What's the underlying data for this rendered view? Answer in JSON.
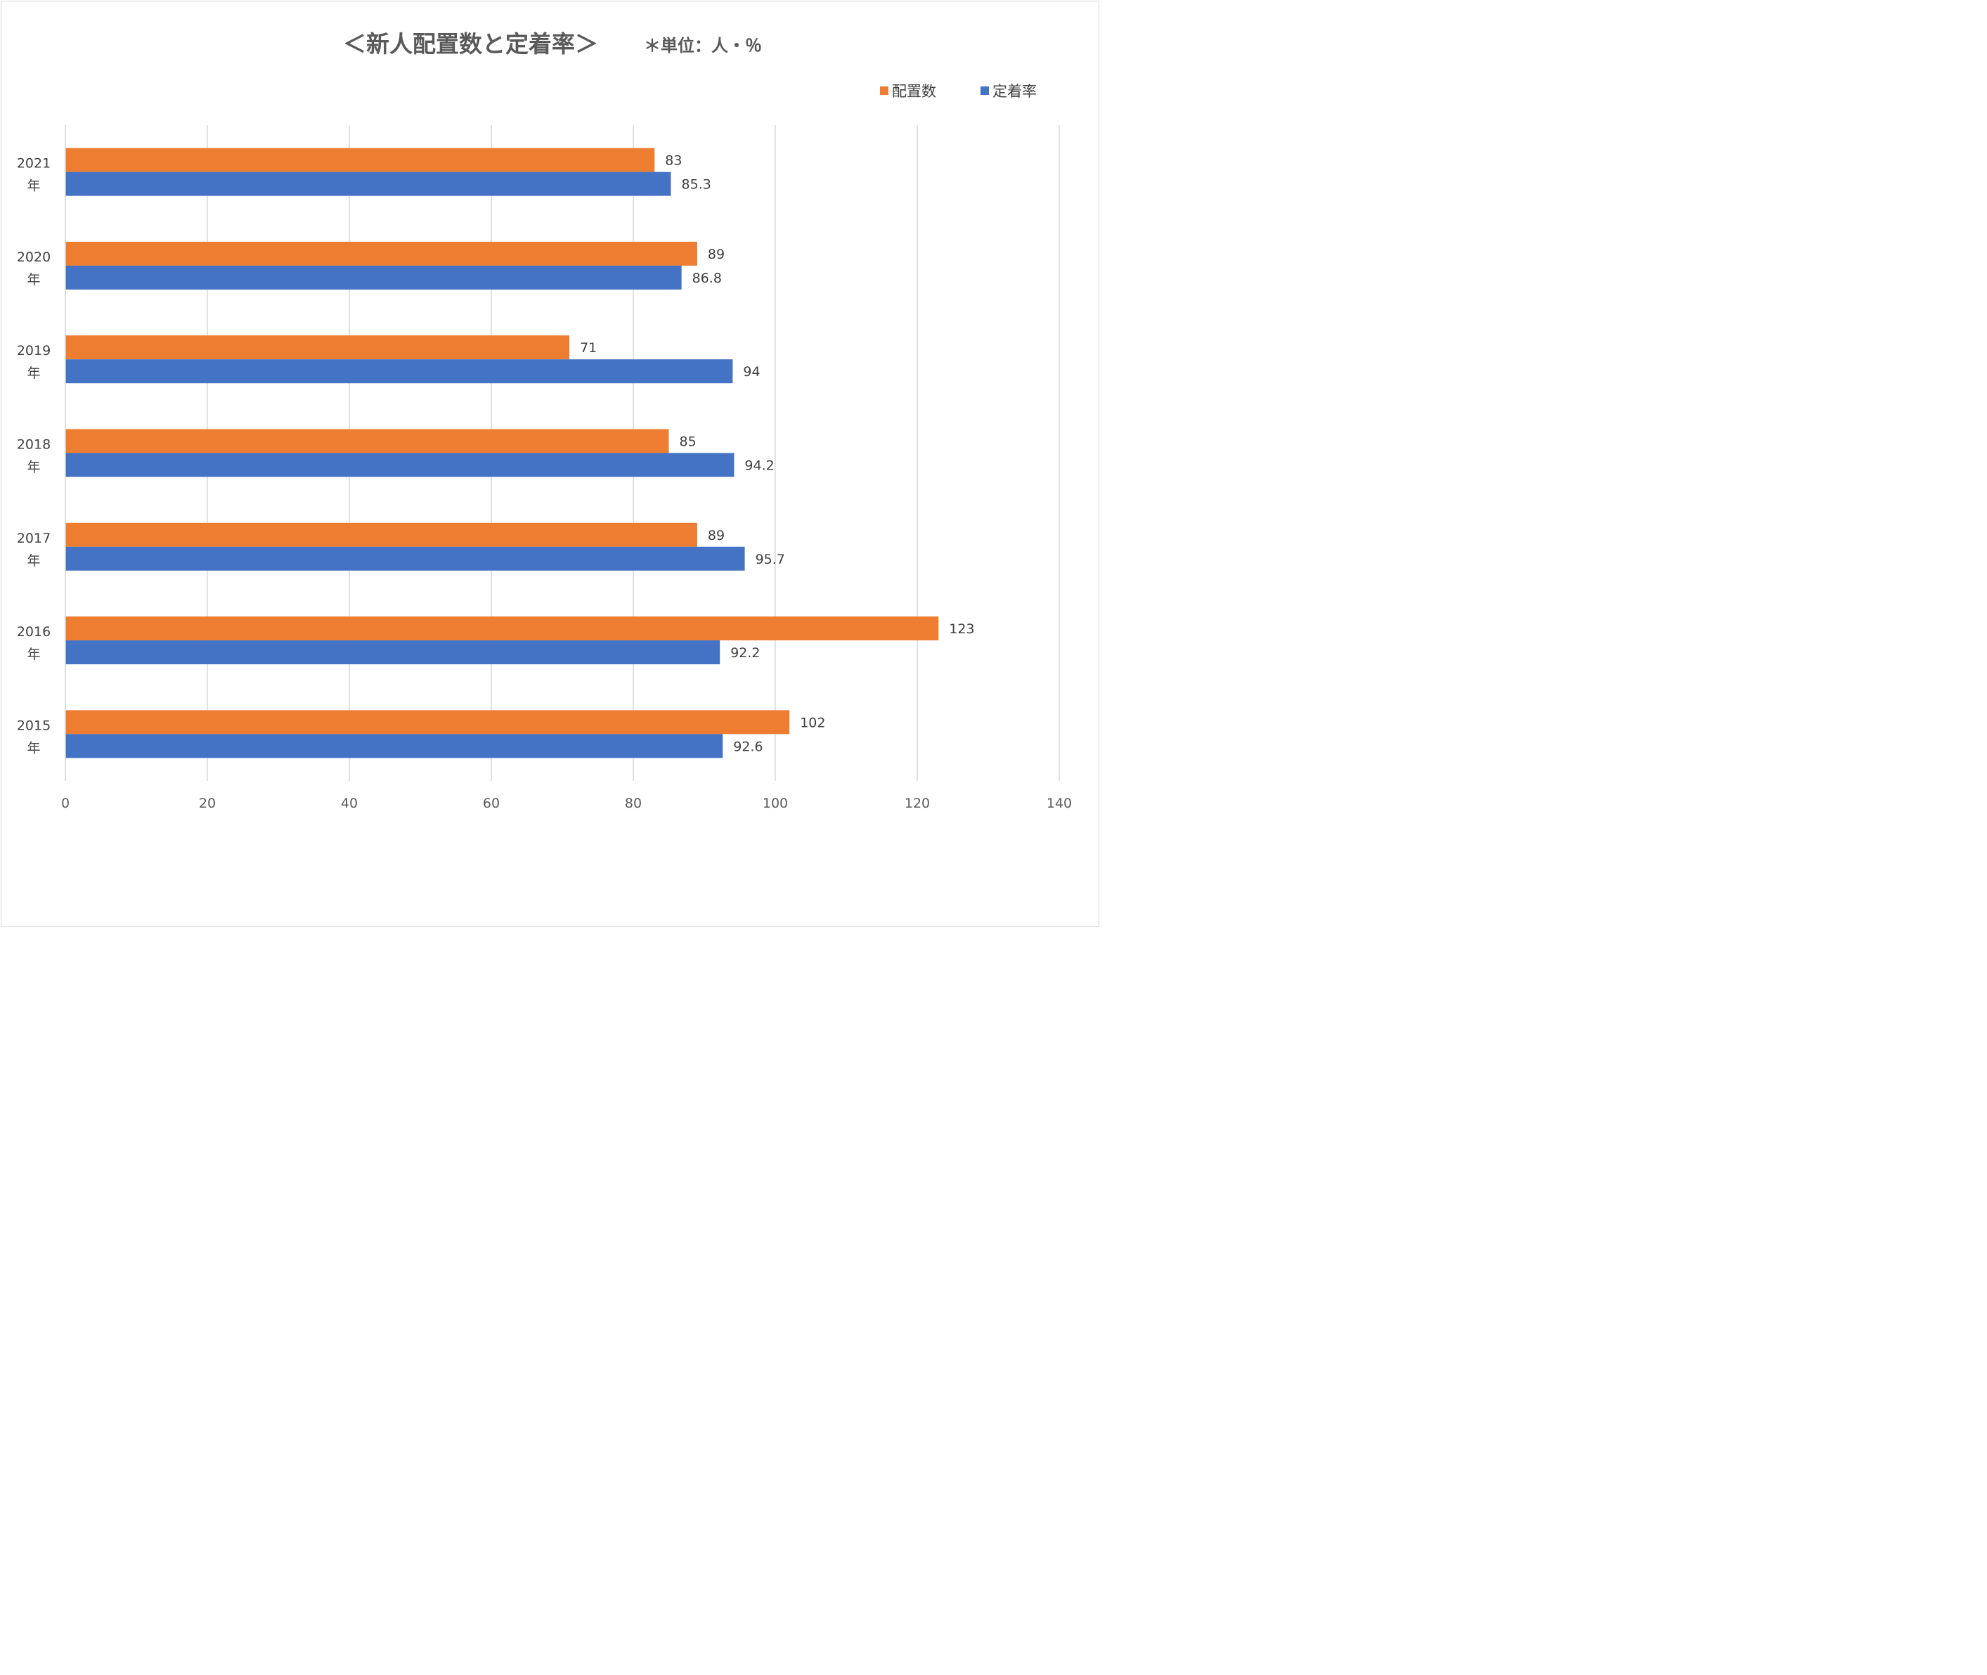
{
  "chart_data": {
    "type": "bar",
    "orientation": "horizontal",
    "title": "＜新人配置数と定着率＞",
    "subtitle": "＊単位：人・％",
    "categories": [
      "2021年",
      "2020年",
      "2019年",
      "2018年",
      "2017年",
      "2016年",
      "2015年"
    ],
    "series": [
      {
        "name": "配置数",
        "color": "#ED7D31",
        "values": [
          83,
          89,
          71,
          85,
          89,
          123,
          102
        ]
      },
      {
        "name": "定着率",
        "color": "#4472C4",
        "values": [
          85.3,
          86.8,
          94,
          94.2,
          95.7,
          92.2,
          92.6
        ]
      }
    ],
    "xlim": [
      0,
      140
    ],
    "xticks": [
      0,
      20,
      40,
      60,
      80,
      100,
      120,
      140
    ],
    "grid": true,
    "legend_position": "top-right",
    "data_labels": true
  }
}
